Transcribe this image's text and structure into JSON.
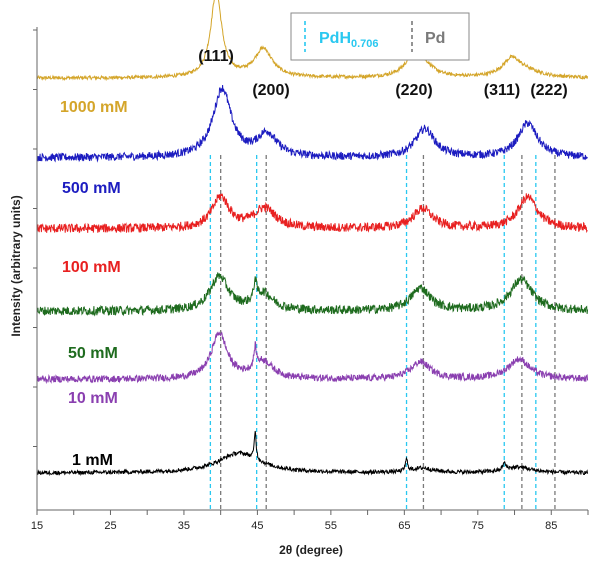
{
  "chart_data": {
    "type": "line",
    "title": "",
    "xlabel": "2θ (degree)",
    "ylabel": "Intensity (arbitrary units)",
    "xlim": [
      15,
      90
    ],
    "ylim": [
      0,
      8.5
    ],
    "grid": false,
    "y_ticks_labeled": false,
    "x_ticks": [
      15,
      25,
      35,
      45,
      55,
      65,
      75,
      85
    ],
    "legend": {
      "placement": "top-right",
      "entries": [
        {
          "label_main": "PdH",
          "label_sub": "0.706",
          "color": "#29c8f0",
          "style": "dashed"
        },
        {
          "label_main": "Pd",
          "label_sub": "",
          "color": "#7a7a7a",
          "style": "dashed"
        }
      ]
    },
    "reference_lines": {
      "PdH0.706": [
        38.6,
        44.9,
        65.3,
        78.6,
        82.9
      ],
      "Pd": [
        40.0,
        46.2,
        67.6,
        81.0,
        85.5
      ]
    },
    "peak_labels": [
      {
        "text": "(111)",
        "x": 39.8
      },
      {
        "text": "(200)",
        "x": 46.6
      },
      {
        "text": "(220)",
        "x": 66.7
      },
      {
        "text": "(311)",
        "x": 79.5
      },
      {
        "text": "(222)",
        "x": 84.5
      }
    ],
    "series": [
      {
        "name": "1000 mM",
        "color": "#d4a52a",
        "baseline": 7.6,
        "peaks": [
          [
            39.4,
            1.5,
            0.9
          ],
          [
            45.8,
            0.5,
            1.5
          ],
          [
            66.3,
            0.35,
            1.5
          ],
          [
            67.8,
            0.15,
            1.5
          ],
          [
            79.6,
            0.3,
            1.5
          ],
          [
            81.5,
            0.1,
            2.5
          ]
        ],
        "hump": 0.0,
        "noise": 0.03
      },
      {
        "name": "500 mM",
        "color": "#1c1cc0",
        "baseline": 6.2,
        "peaks": [
          [
            40.2,
            1.2,
            1.5
          ],
          [
            46.3,
            0.4,
            1.6
          ],
          [
            67.8,
            0.5,
            1.6
          ],
          [
            81.8,
            0.6,
            1.6
          ]
        ],
        "hump": 0.0,
        "noise": 0.07
      },
      {
        "name": "100 mM",
        "color": "#e82020",
        "baseline": 4.95,
        "peaks": [
          [
            40.0,
            0.55,
            1.4
          ],
          [
            46.0,
            0.35,
            1.8
          ],
          [
            67.5,
            0.35,
            1.6
          ],
          [
            81.8,
            0.55,
            1.6
          ]
        ],
        "hump": 0.0,
        "noise": 0.08
      },
      {
        "name": "50 mM",
        "color": "#1e6b1e",
        "baseline": 3.5,
        "peaks": [
          [
            39.8,
            0.6,
            1.5
          ],
          [
            45.8,
            0.3,
            1.6
          ],
          [
            67.2,
            0.4,
            1.6
          ],
          [
            80.9,
            0.55,
            1.8
          ],
          [
            44.7,
            0.35,
            0.2
          ]
        ],
        "hump": 0.0,
        "noise": 0.08
      },
      {
        "name": "10 mM",
        "color": "#8a3fb0",
        "baseline": 2.3,
        "peaks": [
          [
            39.8,
            0.8,
            1.3
          ],
          [
            45.8,
            0.3,
            1.6
          ],
          [
            67.2,
            0.3,
            1.6
          ],
          [
            80.6,
            0.35,
            1.8
          ],
          [
            44.7,
            0.35,
            0.2
          ]
        ],
        "hump": 0.0,
        "noise": 0.06
      },
      {
        "name": "1 mM",
        "color": "#000000",
        "baseline": 0.65,
        "peaks": [
          [
            42.5,
            0.35,
            3.5
          ],
          [
            44.7,
            0.5,
            0.15
          ],
          [
            65.3,
            0.2,
            0.2
          ],
          [
            67.5,
            0.08,
            1.8
          ],
          [
            80.5,
            0.1,
            2.2
          ],
          [
            78.6,
            0.12,
            0.25
          ]
        ],
        "hump": 0.0,
        "noise": 0.035
      }
    ]
  }
}
